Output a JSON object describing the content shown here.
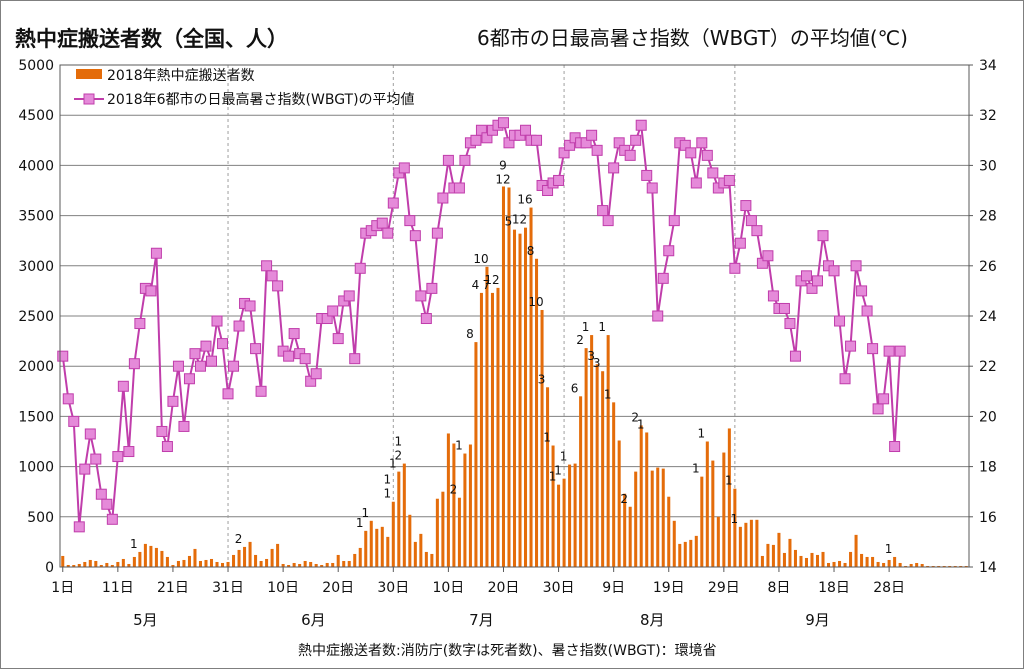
{
  "title_left": "熱中症搬送者数（全国、人）",
  "title_right": "6都市の日最高暑さ指数（WBGT）の平均値(℃)",
  "source_note": "熱中症搬送者数:消防庁(数字は死者数)、暑さ指数(WBGT)：環境省",
  "colors": {
    "bar": "#e46c0a",
    "line": "#c03dab",
    "marker": "#e58ad9",
    "grid": "#808080"
  },
  "chart_data": {
    "type": "bar",
    "title": "熱中症搬送者数（全国、人）",
    "ylim": [
      0,
      5000
    ],
    "y2lim": [
      14,
      34
    ],
    "yticks": [
      "0",
      "500",
      "1000",
      "1500",
      "2000",
      "2500",
      "3000",
      "3500",
      "4000",
      "4500",
      "5000"
    ],
    "y2ticks": [
      "14",
      "16",
      "18",
      "20",
      "22",
      "24",
      "26",
      "28",
      "30",
      "32",
      "34"
    ],
    "x_tick_labels": [
      "1日",
      "11日",
      "21日",
      "31日",
      "10日",
      "20日",
      "30日",
      "10日",
      "20日",
      "30日",
      "9日",
      "19日",
      "29日",
      "8日",
      "18日",
      "28日"
    ],
    "x_tick_index": [
      0,
      10,
      20,
      30,
      40,
      50,
      60,
      70,
      80,
      90,
      100,
      110,
      120,
      130,
      140,
      150
    ],
    "month_labels": [
      "5月",
      "6月",
      "7月",
      "8月",
      "9月"
    ],
    "month_label_center": [
      15,
      45.5,
      76,
      107,
      137
    ],
    "month_dividers": [
      30.5,
      60.5,
      91.5,
      122.5
    ],
    "legend": [
      "2018年熱中症搬送者数",
      "2018年6都市の日最高暑さ指数(WBGT)の平均値"
    ],
    "start_date": "2018-05-01",
    "series": [
      {
        "name": "2018年熱中症搬送者数",
        "kind": "bar",
        "values": [
          110,
          20,
          20,
          30,
          50,
          70,
          60,
          20,
          40,
          20,
          50,
          80,
          30,
          100,
          150,
          230,
          210,
          190,
          160,
          100,
          20,
          60,
          70,
          110,
          180,
          60,
          70,
          80,
          50,
          40,
          50,
          120,
          170,
          200,
          250,
          120,
          60,
          80,
          180,
          230,
          30,
          20,
          40,
          30,
          60,
          50,
          30,
          20,
          40,
          40,
          120,
          60,
          60,
          130,
          190,
          360,
          460,
          380,
          400,
          300,
          650,
          950,
          1030,
          520,
          250,
          330,
          150,
          130,
          680,
          750,
          1330,
          1230,
          690,
          1130,
          1220,
          2240,
          2730,
          2990,
          2730,
          2780,
          3790,
          3780,
          3360,
          3320,
          3380,
          3580,
          3070,
          2560,
          1790,
          1210,
          820,
          880,
          1020,
          1030,
          1700,
          2180,
          2310,
          2020,
          1950,
          2310,
          1640,
          1260,
          730,
          600,
          950,
          1410,
          1340,
          960,
          990,
          980,
          700,
          460,
          230,
          250,
          270,
          310,
          900,
          1250,
          1060,
          500,
          1140,
          1380,
          780,
          400,
          440,
          470,
          470,
          110,
          230,
          220,
          340,
          140,
          280,
          170,
          110,
          90,
          140,
          120,
          150,
          40,
          50,
          60,
          40,
          150,
          320,
          130,
          100,
          100,
          50,
          40,
          70,
          100,
          40,
          10,
          30,
          40,
          30,
          10,
          10,
          10,
          10,
          10,
          10,
          10,
          10
        ]
      },
      {
        "name": "2018年6都市の日最高暑さ指数(WBGT)の平均値",
        "kind": "line",
        "axis": "right",
        "values": [
          22.4,
          20.7,
          19.8,
          15.6,
          17.9,
          19.3,
          18.3,
          16.9,
          16.5,
          15.9,
          18.4,
          21.2,
          18.6,
          22.1,
          23.7,
          25.1,
          25.0,
          26.5,
          19.4,
          18.8,
          20.6,
          22.0,
          19.6,
          21.5,
          22.5,
          22.0,
          22.8,
          22.2,
          23.8,
          22.9,
          20.9,
          22.0,
          23.6,
          24.5,
          24.4,
          22.7,
          21.0,
          26.0,
          25.6,
          25.2,
          22.6,
          22.4,
          23.3,
          22.5,
          22.3,
          21.4,
          21.7,
          23.9,
          23.9,
          24.2,
          23.1,
          24.6,
          24.8,
          22.3,
          25.9,
          27.3,
          27.4,
          27.6,
          27.7,
          27.3,
          28.5,
          29.7,
          29.9,
          27.8,
          27.2,
          24.8,
          23.9,
          25.1,
          27.3,
          28.7,
          30.2,
          29.1,
          29.1,
          30.2,
          30.9,
          31.0,
          31.4,
          31.1,
          31.4,
          31.6,
          31.7,
          30.9,
          31.2,
          31.2,
          31.4,
          31.0,
          31.0,
          29.2,
          29.0,
          29.3,
          29.4,
          30.5,
          30.8,
          31.1,
          30.9,
          30.9,
          31.2,
          30.6,
          28.2,
          27.8,
          29.9,
          30.9,
          30.6,
          30.4,
          31.0,
          31.6,
          29.6,
          29.1,
          24.0,
          25.5,
          26.6,
          27.8,
          30.9,
          30.8,
          30.5,
          29.3,
          30.9,
          30.4,
          29.7,
          29.1,
          29.3,
          29.4,
          25.9,
          26.9,
          28.4,
          27.8,
          27.4,
          26.1,
          26.4,
          24.8,
          24.3,
          24.3,
          23.7,
          22.4,
          25.4,
          25.6,
          25.1,
          25.4,
          27.2,
          26.0,
          25.8,
          23.8,
          21.5,
          22.8,
          26.0,
          25.0,
          24.2,
          22.7,
          20.3,
          20.7,
          22.6,
          18.8,
          22.6
        ]
      }
    ],
    "death_labels": [
      {
        "i": 14,
        "label": "1"
      },
      {
        "i": 33,
        "label": "2"
      },
      {
        "i": 55,
        "label": "1"
      },
      {
        "i": 56,
        "label": "1"
      },
      {
        "i": 60,
        "label": "1"
      },
      {
        "i": 61,
        "label": "1"
      },
      {
        "i": 62,
        "label": "2"
      },
      {
        "i": 62,
        "label": "1"
      },
      {
        "i": 60,
        "label": "1"
      },
      {
        "i": 75,
        "label": "8"
      },
      {
        "i": 72,
        "label": "2"
      },
      {
        "i": 73,
        "label": "1"
      },
      {
        "i": 76,
        "label": "4"
      },
      {
        "i": 77,
        "label": "10"
      },
      {
        "i": 78,
        "label": "7"
      },
      {
        "i": 79,
        "label": "12"
      },
      {
        "i": 81,
        "label": "12"
      },
      {
        "i": 81,
        "label": "9"
      },
      {
        "i": 82,
        "label": "5"
      },
      {
        "i": 84,
        "label": "12"
      },
      {
        "i": 85,
        "label": "16"
      },
      {
        "i": 86,
        "label": "8"
      },
      {
        "i": 87,
        "label": "10"
      },
      {
        "i": 88,
        "label": "3"
      },
      {
        "i": 89,
        "label": "1"
      },
      {
        "i": 90,
        "label": "1"
      },
      {
        "i": 91,
        "label": "1"
      },
      {
        "i": 92,
        "label": "1"
      },
      {
        "i": 94,
        "label": "6"
      },
      {
        "i": 95,
        "label": "2"
      },
      {
        "i": 96,
        "label": "1"
      },
      {
        "i": 97,
        "label": "3"
      },
      {
        "i": 98,
        "label": "3"
      },
      {
        "i": 99,
        "label": "1"
      },
      {
        "i": 100,
        "label": "1"
      },
      {
        "i": 103,
        "label": "2"
      },
      {
        "i": 105,
        "label": "2"
      },
      {
        "i": 106,
        "label": "1"
      },
      {
        "i": 116,
        "label": "1"
      },
      {
        "i": 117,
        "label": "1"
      },
      {
        "i": 122,
        "label": "1"
      },
      {
        "i": 123,
        "label": "1"
      },
      {
        "i": 151,
        "label": "1"
      }
    ]
  }
}
